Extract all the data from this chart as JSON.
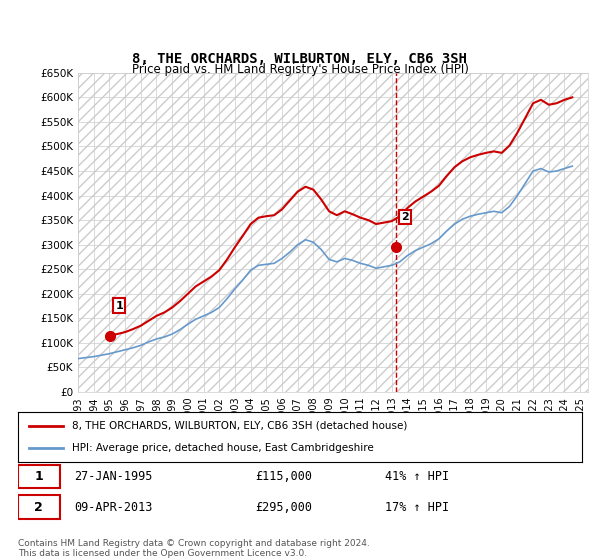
{
  "title": "8, THE ORCHARDS, WILBURTON, ELY, CB6 3SH",
  "subtitle": "Price paid vs. HM Land Registry's House Price Index (HPI)",
  "ylabel_ticks": [
    "£0",
    "£50K",
    "£100K",
    "£150K",
    "£200K",
    "£250K",
    "£300K",
    "£350K",
    "£400K",
    "£450K",
    "£500K",
    "£550K",
    "£600K",
    "£650K"
  ],
  "ytick_values": [
    0,
    50000,
    100000,
    150000,
    200000,
    250000,
    300000,
    350000,
    400000,
    450000,
    500000,
    550000,
    600000,
    650000
  ],
  "ylim": [
    0,
    650000
  ],
  "xlim_start": 1993.0,
  "xlim_end": 2025.5,
  "sale1_x": 1995.07,
  "sale1_y": 115000,
  "sale1_label": "1",
  "sale2_x": 2013.27,
  "sale2_y": 295000,
  "sale2_label": "2",
  "dashed_line_x": 2013.27,
  "red_line_color": "#cc0000",
  "blue_line_color": "#6699cc",
  "grid_color": "#cccccc",
  "background_color": "#ffffff",
  "plot_bg_color": "#f5f5f5",
  "legend_label_red": "8, THE ORCHARDS, WILBURTON, ELY, CB6 3SH (detached house)",
  "legend_label_blue": "HPI: Average price, detached house, East Cambridgeshire",
  "table_row1": [
    "1",
    "27-JAN-1995",
    "£115,000",
    "41% ↑ HPI"
  ],
  "table_row2": [
    "2",
    "09-APR-2013",
    "£295,000",
    "17% ↑ HPI"
  ],
  "footnote": "Contains HM Land Registry data © Crown copyright and database right 2024.\nThis data is licensed under the Open Government Licence v3.0.",
  "hpi_years": [
    1993,
    1993.5,
    1994,
    1994.5,
    1995,
    1995.5,
    1996,
    1996.5,
    1997,
    1997.5,
    1998,
    1998.5,
    1999,
    1999.5,
    2000,
    2000.5,
    2001,
    2001.5,
    2002,
    2002.5,
    2003,
    2003.5,
    2004,
    2004.5,
    2005,
    2005.5,
    2006,
    2006.5,
    2007,
    2007.5,
    2008,
    2008.5,
    2009,
    2009.5,
    2010,
    2010.5,
    2011,
    2011.5,
    2012,
    2012.5,
    2013,
    2013.5,
    2014,
    2014.5,
    2015,
    2015.5,
    2016,
    2016.5,
    2017,
    2017.5,
    2018,
    2018.5,
    2019,
    2019.5,
    2020,
    2020.5,
    2021,
    2021.5,
    2022,
    2022.5,
    2023,
    2023.5,
    2024,
    2024.5
  ],
  "hpi_values": [
    68000,
    70000,
    72000,
    75000,
    78000,
    82000,
    86000,
    90000,
    95000,
    102000,
    108000,
    112000,
    118000,
    127000,
    138000,
    148000,
    155000,
    162000,
    172000,
    190000,
    210000,
    228000,
    248000,
    258000,
    260000,
    262000,
    272000,
    285000,
    300000,
    310000,
    305000,
    290000,
    270000,
    265000,
    272000,
    268000,
    262000,
    258000,
    252000,
    255000,
    258000,
    265000,
    278000,
    288000,
    295000,
    302000,
    312000,
    328000,
    342000,
    352000,
    358000,
    362000,
    365000,
    368000,
    365000,
    378000,
    400000,
    425000,
    450000,
    455000,
    448000,
    450000,
    455000,
    460000
  ],
  "red_years": [
    1993,
    1993.5,
    1994,
    1994.5,
    1995,
    1995.5,
    1996,
    1996.5,
    1997,
    1997.5,
    1998,
    1998.5,
    1999,
    1999.5,
    2000,
    2000.5,
    2001,
    2001.5,
    2002,
    2002.5,
    2003,
    2003.5,
    2004,
    2004.5,
    2005,
    2005.5,
    2006,
    2006.5,
    2007,
    2007.5,
    2008,
    2008.5,
    2009,
    2009.5,
    2010,
    2010.5,
    2011,
    2011.5,
    2012,
    2012.5,
    2013,
    2013.5,
    2014,
    2014.5,
    2015,
    2015.5,
    2016,
    2016.5,
    2017,
    2017.5,
    2018,
    2018.5,
    2019,
    2019.5,
    2020,
    2020.5,
    2021,
    2021.5,
    2022,
    2022.5,
    2023,
    2023.5,
    2024,
    2024.5
  ],
  "red_values": [
    null,
    null,
    null,
    null,
    115000,
    118000,
    122000,
    128000,
    135000,
    145000,
    155000,
    162000,
    172000,
    185000,
    200000,
    215000,
    225000,
    235000,
    248000,
    270000,
    295000,
    318000,
    342000,
    355000,
    358000,
    360000,
    372000,
    390000,
    408000,
    418000,
    412000,
    392000,
    368000,
    360000,
    368000,
    362000,
    355000,
    350000,
    342000,
    345000,
    348000,
    358000,
    375000,
    388000,
    398000,
    408000,
    420000,
    440000,
    458000,
    470000,
    478000,
    483000,
    487000,
    490000,
    487000,
    502000,
    528000,
    558000,
    588000,
    595000,
    585000,
    588000,
    595000,
    600000
  ],
  "xtick_years": [
    1993,
    1994,
    1995,
    1996,
    1997,
    1998,
    1999,
    2000,
    2001,
    2002,
    2003,
    2004,
    2005,
    2006,
    2007,
    2008,
    2009,
    2010,
    2011,
    2012,
    2013,
    2014,
    2015,
    2016,
    2017,
    2018,
    2019,
    2020,
    2021,
    2022,
    2023,
    2024,
    2025
  ]
}
